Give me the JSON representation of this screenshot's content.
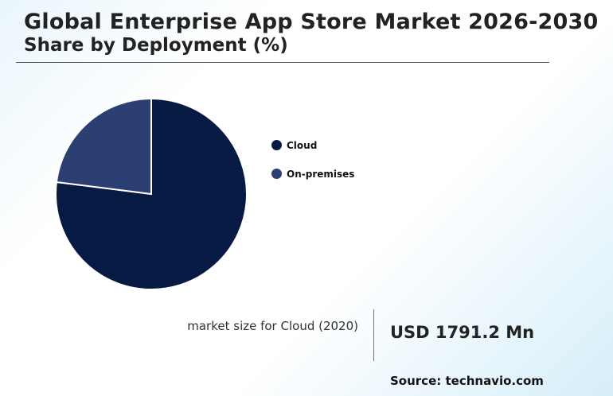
{
  "chart_data": {
    "type": "pie",
    "title": "Global Enterprise App Store Market 2026-2030",
    "subtitle": "Share by Deployment (%)",
    "categories": [
      "Cloud",
      "On-premises"
    ],
    "values": [
      77,
      23
    ],
    "colors": [
      "#071a43",
      "#2b3f73"
    ],
    "legend_position": "right"
  },
  "kpi": {
    "label": "market size for Cloud (2020)",
    "value": "USD 1791.2 Mn"
  },
  "source": "Source: technavio.com"
}
